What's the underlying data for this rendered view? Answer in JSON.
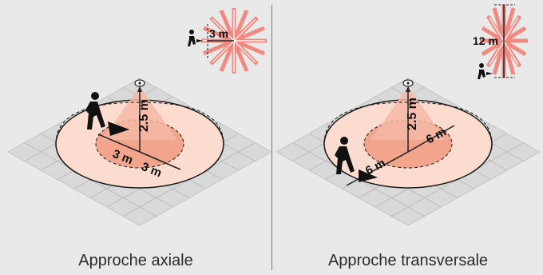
{
  "panels": [
    {
      "caption": "Approche axiale",
      "labels": {
        "height": "2.5 m",
        "radius_a": "3 m",
        "radius_b": "3 m",
        "inset_range": "3 m"
      }
    },
    {
      "caption": "Approche transversale",
      "labels": {
        "height": "2.5 m",
        "radius_a": "6 m",
        "radius_b": "6 m",
        "inset_range": "12 m"
      }
    }
  ],
  "colors": {
    "background": "#e9e9e9",
    "floor": "#d8d8d8",
    "grid": "#b8b8b8",
    "outer_zone": "#fbd9cc",
    "inner_zone": "#f3a48c",
    "cone": "#f4b7a5",
    "star": "#f08a80"
  }
}
